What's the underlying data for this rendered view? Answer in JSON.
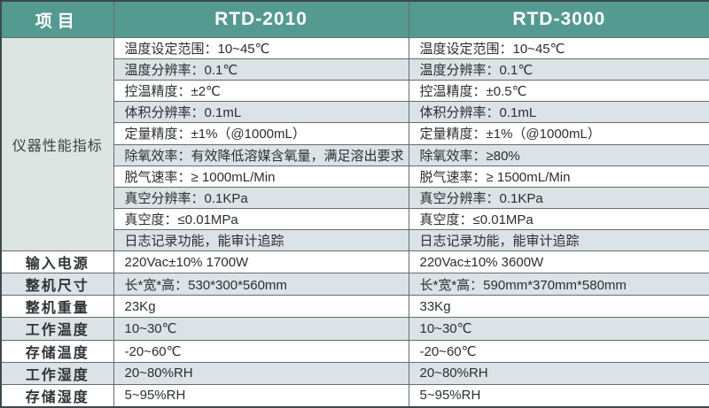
{
  "table": {
    "header": {
      "item_col": "项目",
      "model_a": "RTD-2010",
      "model_b": "RTD-3000"
    },
    "merged_label": "仪器性能指标",
    "performance_rows": [
      {
        "a": "温度设定范围：10~45℃",
        "b": "温度设定范围：10~45℃"
      },
      {
        "a": "温度分辨率：0.1℃",
        "b": "温度分辨率：0.1℃"
      },
      {
        "a": "控温精度：±2℃",
        "b": "控温精度：±0.5℃"
      },
      {
        "a": "体积分辨率：0.1mL",
        "b": "体积分辨率：0.1mL"
      },
      {
        "a": "定量精度：±1%（@1000mL）",
        "b": "定量精度：±1%（@1000mL）"
      },
      {
        "a": "除氧效率：有效降低溶媒含氧量，满足溶出要求",
        "b": "除氧效率：≥80%"
      },
      {
        "a": "脱气速率：≥ 1000mL/Min",
        "b": "脱气速率：≥ 1500mL/Min"
      },
      {
        "a": "真空分辨率：0.1KPa",
        "b": "真空分辨率：0.1KPa"
      },
      {
        "a": "真空度：≤0.01MPa",
        "b": "真空度：≤0.01MPa"
      },
      {
        "a": "日志记录功能，能审计追踪",
        "b": "日志记录功能，能审计追踪"
      }
    ],
    "spec_rows": [
      {
        "label": "输入电源",
        "a": "220Vac±10% 1700W",
        "b": "220Vac±10% 3600W"
      },
      {
        "label": "整机尺寸",
        "a": "长*宽*高：530*300*560mm",
        "b": "长*宽*高：590mm*370mm*580mm"
      },
      {
        "label": "整机重量",
        "a": "23Kg",
        "b": "33Kg"
      },
      {
        "label": "工作温度",
        "a": "10~30℃",
        "b": "10~30℃"
      },
      {
        "label": "存储温度",
        "a": "-20~60℃",
        "b": "-20~60℃"
      },
      {
        "label": "工作湿度",
        "a": "20~80%RH",
        "b": "20~80%RH"
      },
      {
        "label": "存储湿度",
        "a": "5~95%RH",
        "b": "5~95%RH"
      }
    ],
    "colors": {
      "header_bg": "#559a90",
      "stripe_bg": "#dbe3e6",
      "merged_bg": "#dde5e2",
      "grid_line": "#5f6f6f",
      "outer_border": "#3a4a4a"
    }
  }
}
